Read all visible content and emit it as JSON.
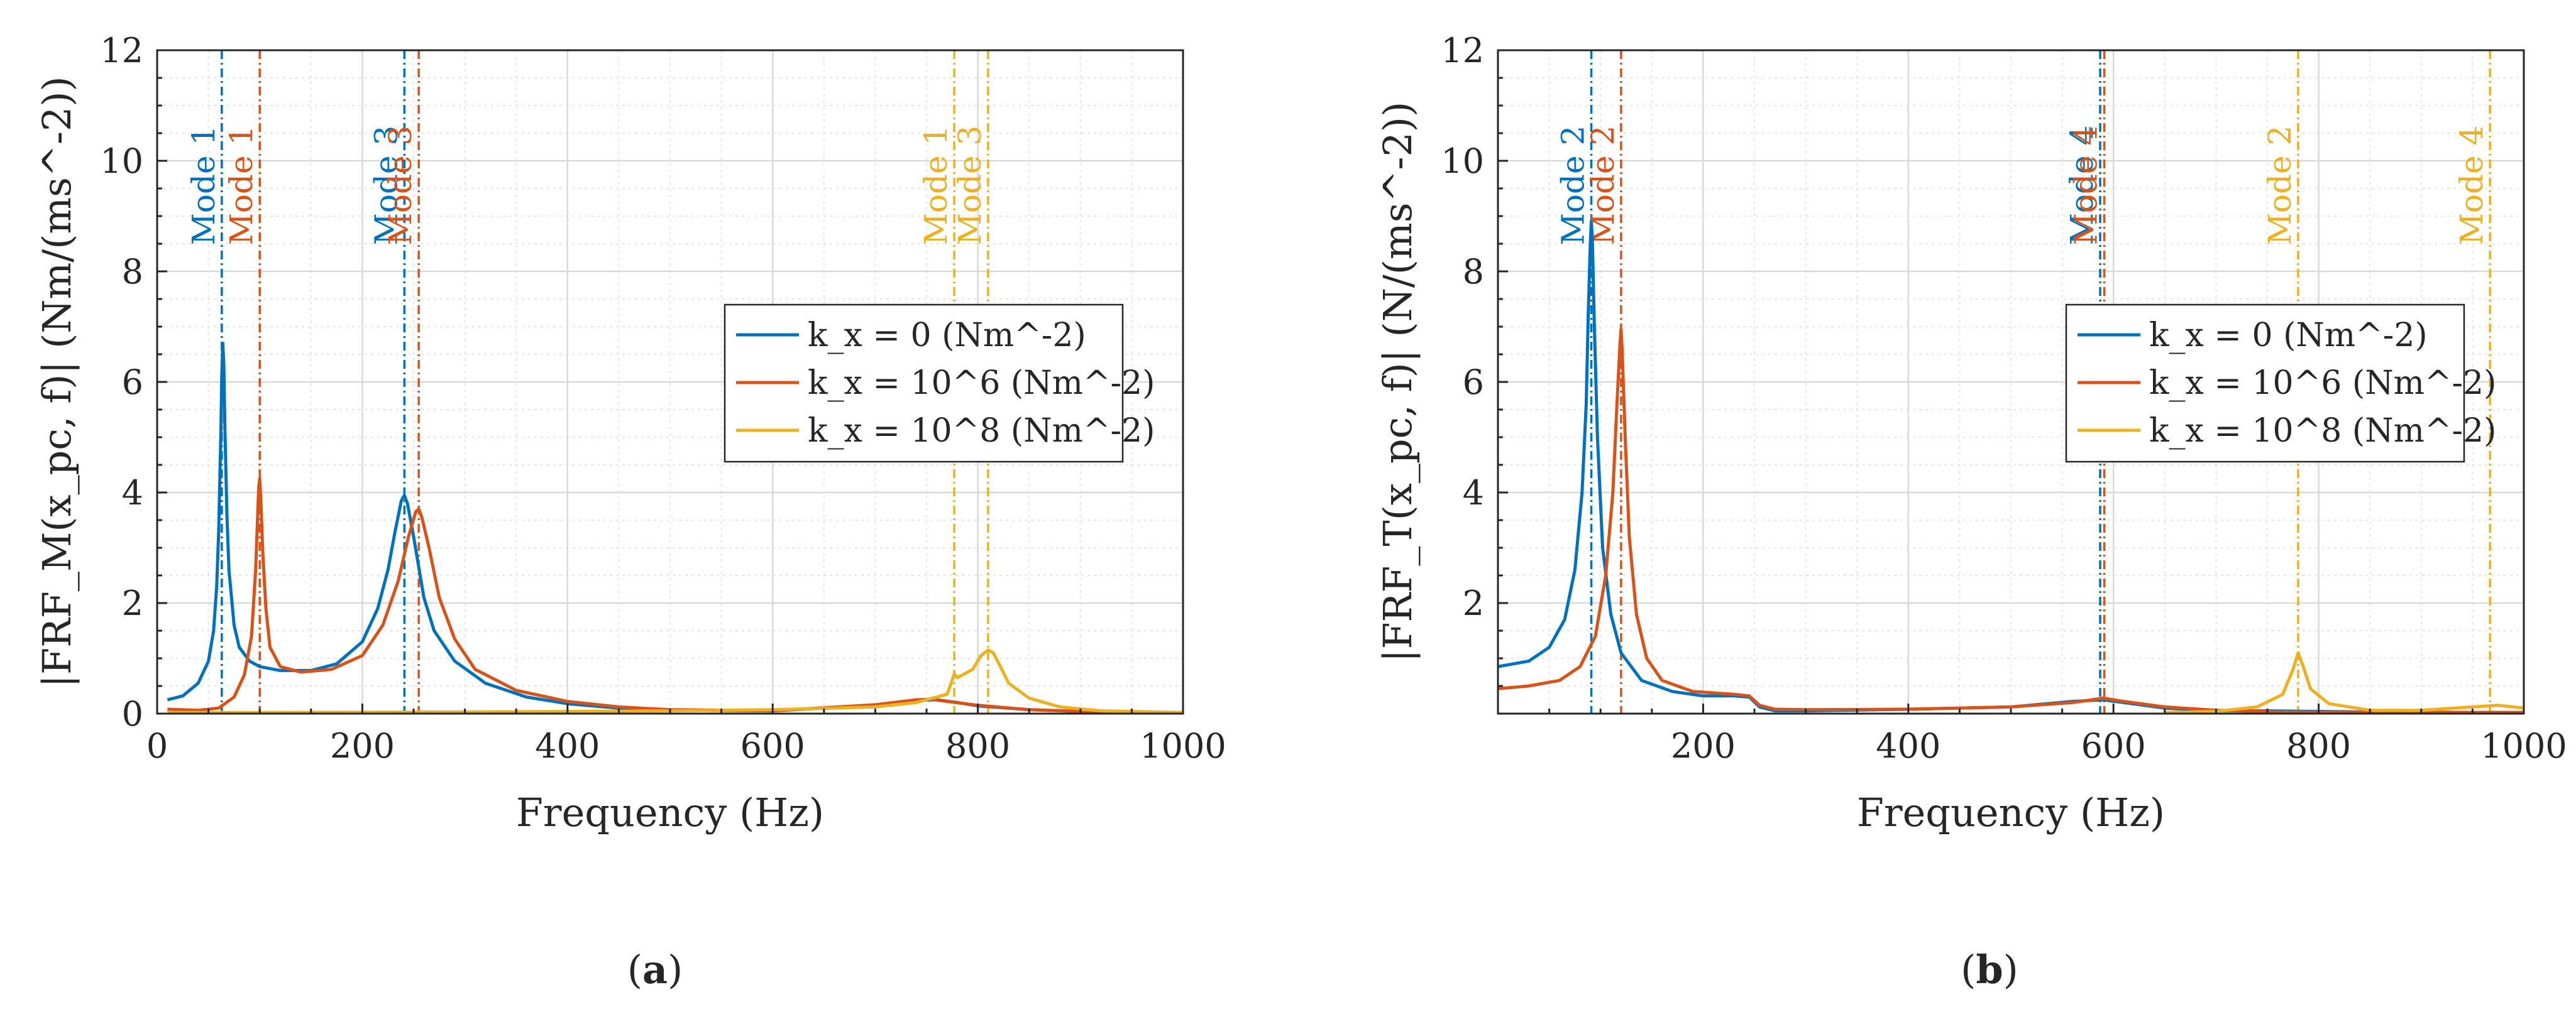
{
  "chart_data": [
    {
      "type": "line",
      "panel_label": "a",
      "xlabel": "Frequency (Hz)",
      "ylabel": "|FRF_M(x_pc, f)| (Nm/(ms^-2))",
      "xlim": [
        0,
        1000
      ],
      "ylim": [
        0,
        12
      ],
      "xticks": [
        0,
        200,
        400,
        600,
        800,
        1000
      ],
      "yticks": [
        0,
        2,
        4,
        6,
        8,
        10,
        12
      ],
      "grid": true,
      "legend_position": "center-right",
      "series": [
        {
          "name": "k_x = 0 (Nm^-2)",
          "color": "#0072BD",
          "points": [
            [
              10,
              0.25
            ],
            [
              25,
              0.32
            ],
            [
              40,
              0.55
            ],
            [
              50,
              0.95
            ],
            [
              55,
              1.5
            ],
            [
              58,
              2.3
            ],
            [
              60,
              3.3
            ],
            [
              62,
              5.0
            ],
            [
              63,
              6.1
            ],
            [
              64,
              6.7
            ],
            [
              65,
              6.3
            ],
            [
              66,
              5.2
            ],
            [
              68,
              3.6
            ],
            [
              70,
              2.6
            ],
            [
              75,
              1.6
            ],
            [
              80,
              1.2
            ],
            [
              90,
              0.95
            ],
            [
              100,
              0.85
            ],
            [
              120,
              0.78
            ],
            [
              150,
              0.78
            ],
            [
              175,
              0.9
            ],
            [
              200,
              1.3
            ],
            [
              215,
              1.9
            ],
            [
              225,
              2.6
            ],
            [
              232,
              3.3
            ],
            [
              238,
              3.85
            ],
            [
              241,
              3.95
            ],
            [
              244,
              3.8
            ],
            [
              250,
              3.2
            ],
            [
              260,
              2.1
            ],
            [
              270,
              1.5
            ],
            [
              290,
              0.95
            ],
            [
              320,
              0.55
            ],
            [
              360,
              0.3
            ],
            [
              400,
              0.18
            ],
            [
              450,
              0.1
            ],
            [
              500,
              0.06
            ],
            [
              600,
              0.05
            ],
            [
              700,
              0.15
            ],
            [
              740,
              0.24
            ],
            [
              760,
              0.25
            ],
            [
              780,
              0.2
            ],
            [
              800,
              0.14
            ],
            [
              850,
              0.07
            ],
            [
              900,
              0.04
            ],
            [
              1000,
              0.02
            ]
          ]
        },
        {
          "name": "k_x = 10^6 (Nm^-2)",
          "color": "#D95319",
          "points": [
            [
              10,
              0.08
            ],
            [
              40,
              0.06
            ],
            [
              60,
              0.1
            ],
            [
              75,
              0.3
            ],
            [
              85,
              0.7
            ],
            [
              92,
              1.4
            ],
            [
              96,
              2.6
            ],
            [
              98,
              3.6
            ],
            [
              99,
              4.1
            ],
            [
              100,
              4.25
            ],
            [
              101,
              3.9
            ],
            [
              103,
              2.9
            ],
            [
              106,
              1.9
            ],
            [
              110,
              1.2
            ],
            [
              120,
              0.85
            ],
            [
              140,
              0.75
            ],
            [
              170,
              0.8
            ],
            [
              200,
              1.05
            ],
            [
              220,
              1.6
            ],
            [
              235,
              2.4
            ],
            [
              245,
              3.2
            ],
            [
              252,
              3.65
            ],
            [
              255,
              3.7
            ],
            [
              258,
              3.55
            ],
            [
              265,
              3.0
            ],
            [
              275,
              2.1
            ],
            [
              290,
              1.35
            ],
            [
              310,
              0.8
            ],
            [
              350,
              0.42
            ],
            [
              400,
              0.22
            ],
            [
              450,
              0.12
            ],
            [
              500,
              0.07
            ],
            [
              600,
              0.05
            ],
            [
              700,
              0.16
            ],
            [
              740,
              0.25
            ],
            [
              755,
              0.26
            ],
            [
              770,
              0.22
            ],
            [
              800,
              0.15
            ],
            [
              850,
              0.07
            ],
            [
              900,
              0.04
            ],
            [
              1000,
              0.02
            ]
          ]
        },
        {
          "name": "k_x = 10^8 (Nm^-2)",
          "color": "#EDB120",
          "points": [
            [
              10,
              0.02
            ],
            [
              100,
              0.02
            ],
            [
              300,
              0.03
            ],
            [
              500,
              0.05
            ],
            [
              600,
              0.07
            ],
            [
              700,
              0.12
            ],
            [
              740,
              0.2
            ],
            [
              770,
              0.35
            ],
            [
              774,
              0.55
            ],
            [
              777,
              0.72
            ],
            [
              780,
              0.65
            ],
            [
              785,
              0.7
            ],
            [
              795,
              0.8
            ],
            [
              803,
              1.05
            ],
            [
              810,
              1.15
            ],
            [
              815,
              1.1
            ],
            [
              822,
              0.85
            ],
            [
              830,
              0.55
            ],
            [
              850,
              0.28
            ],
            [
              880,
              0.12
            ],
            [
              920,
              0.05
            ],
            [
              1000,
              0.02
            ]
          ]
        }
      ],
      "mode_markers": [
        {
          "label": "Mode 1",
          "x": 63,
          "color": "#0072BD"
        },
        {
          "label": "Mode 1",
          "x": 100,
          "color": "#D95319"
        },
        {
          "label": "Mode 3",
          "x": 241,
          "color": "#0072BD"
        },
        {
          "label": "Mode 3",
          "x": 255,
          "color": "#D95319"
        },
        {
          "label": "Mode 1",
          "x": 777,
          "color": "#EDB120"
        },
        {
          "label": "Mode 3",
          "x": 810,
          "color": "#EDB120"
        }
      ]
    },
    {
      "type": "line",
      "panel_label": "b",
      "xlabel": "Frequency (Hz)",
      "ylabel": "|FRF_T(x_pc, f)| (N/(ms^-2))",
      "xlim": [
        0,
        1000
      ],
      "ylim": [
        0,
        12
      ],
      "xticks": [
        200,
        400,
        600,
        800,
        1000
      ],
      "yticks": [
        2,
        4,
        6,
        8,
        10,
        12
      ],
      "grid": true,
      "legend_position": "center-right",
      "series": [
        {
          "name": "k_x = 0 (Nm^-2)",
          "color": "#0072BD",
          "points": [
            [
              0,
              0.85
            ],
            [
              30,
              0.95
            ],
            [
              50,
              1.2
            ],
            [
              65,
              1.7
            ],
            [
              75,
              2.6
            ],
            [
              82,
              4.0
            ],
            [
              86,
              5.6
            ],
            [
              88,
              7.2
            ],
            [
              90,
              8.5
            ],
            [
              91,
              8.9
            ],
            [
              92,
              8.6
            ],
            [
              94,
              7.0
            ],
            [
              97,
              5.0
            ],
            [
              102,
              3.0
            ],
            [
              110,
              1.8
            ],
            [
              120,
              1.1
            ],
            [
              140,
              0.6
            ],
            [
              170,
              0.4
            ],
            [
              200,
              0.32
            ],
            [
              230,
              0.32
            ],
            [
              245,
              0.3
            ],
            [
              255,
              0.12
            ],
            [
              270,
              0.05
            ],
            [
              300,
              0.05
            ],
            [
              400,
              0.08
            ],
            [
              500,
              0.12
            ],
            [
              560,
              0.22
            ],
            [
              590,
              0.25
            ],
            [
              610,
              0.2
            ],
            [
              650,
              0.1
            ],
            [
              700,
              0.05
            ],
            [
              750,
              0.05
            ],
            [
              800,
              0.04
            ],
            [
              850,
              0.03
            ],
            [
              1000,
              0.02
            ]
          ]
        },
        {
          "name": "k_x = 10^6 (Nm^-2)",
          "color": "#D95319",
          "points": [
            [
              0,
              0.45
            ],
            [
              30,
              0.5
            ],
            [
              60,
              0.6
            ],
            [
              80,
              0.85
            ],
            [
              95,
              1.4
            ],
            [
              105,
              2.5
            ],
            [
              112,
              4.0
            ],
            [
              116,
              5.6
            ],
            [
              119,
              6.7
            ],
            [
              120,
              6.95
            ],
            [
              121,
              6.6
            ],
            [
              124,
              5.0
            ],
            [
              128,
              3.2
            ],
            [
              135,
              1.8
            ],
            [
              145,
              1.0
            ],
            [
              160,
              0.6
            ],
            [
              190,
              0.4
            ],
            [
              230,
              0.35
            ],
            [
              245,
              0.32
            ],
            [
              255,
              0.15
            ],
            [
              270,
              0.08
            ],
            [
              300,
              0.07
            ],
            [
              400,
              0.08
            ],
            [
              500,
              0.12
            ],
            [
              560,
              0.2
            ],
            [
              590,
              0.28
            ],
            [
              610,
              0.22
            ],
            [
              650,
              0.12
            ],
            [
              700,
              0.06
            ],
            [
              760,
              0.03
            ],
            [
              1000,
              0.02
            ]
          ]
        },
        {
          "name": "k_x = 10^8 (Nm^-2)",
          "color": "#EDB120",
          "points": [
            [
              650,
              0.02
            ],
            [
              700,
              0.04
            ],
            [
              740,
              0.12
            ],
            [
              765,
              0.35
            ],
            [
              775,
              0.8
            ],
            [
              780,
              1.1
            ],
            [
              785,
              0.85
            ],
            [
              792,
              0.45
            ],
            [
              810,
              0.18
            ],
            [
              850,
              0.06
            ],
            [
              900,
              0.06
            ],
            [
              950,
              0.12
            ],
            [
              975,
              0.15
            ],
            [
              1000,
              0.1
            ]
          ]
        }
      ],
      "mode_markers": [
        {
          "label": "Mode 2",
          "x": 91,
          "color": "#0072BD"
        },
        {
          "label": "Mode 2",
          "x": 120,
          "color": "#D95319"
        },
        {
          "label": "Mode 4",
          "x": 587,
          "color": "#0072BD"
        },
        {
          "label": "Mode 4",
          "x": 591,
          "color": "#D95319"
        },
        {
          "label": "Mode 2",
          "x": 780,
          "color": "#EDB120"
        },
        {
          "label": "Mode 4",
          "x": 967,
          "color": "#EDB120"
        }
      ]
    }
  ]
}
